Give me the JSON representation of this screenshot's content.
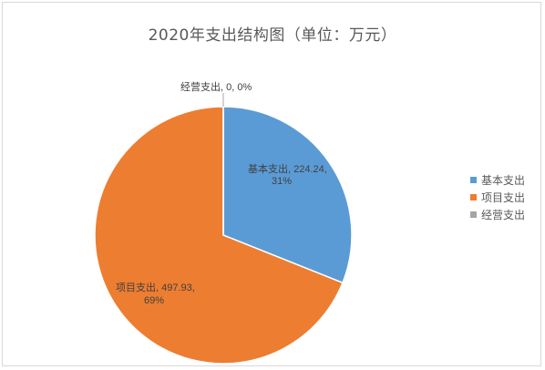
{
  "chart_data": {
    "type": "pie",
    "title": "2020年支出结构图（单位：万元）",
    "categories": [
      "基本支出",
      "项目支出",
      "经营支出"
    ],
    "values": [
      224.24,
      497.93,
      0
    ],
    "percents": [
      "31%",
      "69%",
      "0%"
    ],
    "labels": [
      {
        "line1": "基本支出, 224.24,",
        "line2": "31%"
      },
      {
        "line1": "项目支出, 497.93,",
        "line2": "69%"
      },
      {
        "line1": "经营支出, 0, 0%",
        "line2": ""
      }
    ],
    "colors": [
      "#5b9bd5",
      "#ed7d31",
      "#a5a5a5"
    ],
    "legend_position": "right"
  }
}
